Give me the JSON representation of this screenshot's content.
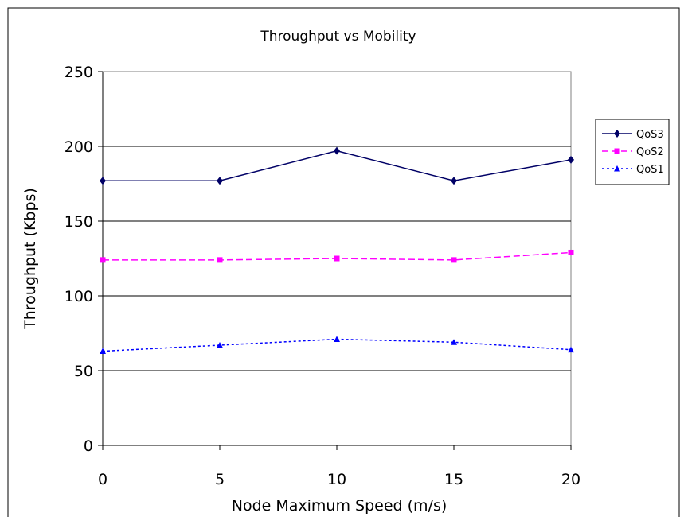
{
  "chart_data": {
    "type": "line",
    "title": "Throughput vs Mobility",
    "xlabel": "Node Maximum Speed (m/s)",
    "ylabel": "Throughput (Kbps)",
    "x": [
      0,
      5,
      10,
      15,
      20
    ],
    "x_ticks": [
      "0",
      "5",
      "10",
      "15",
      "20"
    ],
    "y_ticks": [
      "0",
      "50",
      "100",
      "150",
      "200",
      "250"
    ],
    "xlim": [
      0,
      20
    ],
    "ylim": [
      0,
      250
    ],
    "grid": "horizontal",
    "legend_position": "right",
    "series": [
      {
        "name": "QoS3",
        "values": [
          177,
          177,
          197,
          177,
          191
        ],
        "color": "#000066",
        "marker": "diamond",
        "dash": "solid"
      },
      {
        "name": "QoS2",
        "values": [
          124,
          124,
          125,
          124,
          129
        ],
        "color": "#ff00ff",
        "marker": "square",
        "dash": "dashed"
      },
      {
        "name": "QoS1",
        "values": [
          63,
          67,
          71,
          69,
          64
        ],
        "color": "#0000ff",
        "marker": "triangle",
        "dash": "dotted"
      }
    ]
  }
}
